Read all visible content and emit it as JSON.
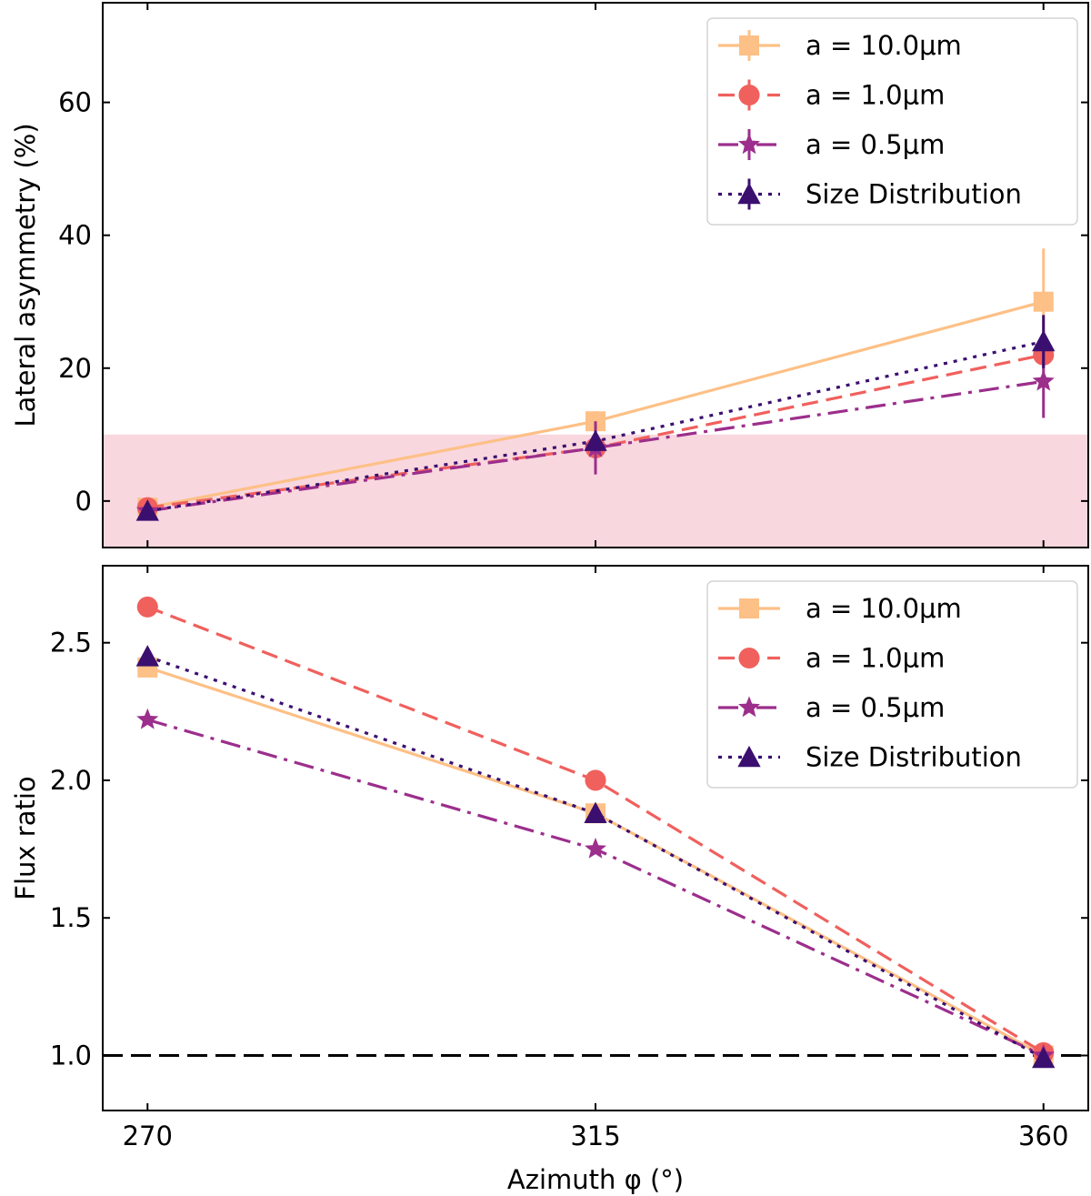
{
  "colors": {
    "a10": "#fdc086",
    "a1": "#f0605d",
    "a05": "#9c2e8c",
    "sizedist": "#3b0f70",
    "shade": "#f8d7df",
    "refline": "#000000"
  },
  "chart_data": [
    {
      "type": "line",
      "panel": "top",
      "title": "",
      "xlabel": "",
      "ylabel": "Lateral asymmetry (%)",
      "x": [
        270,
        315,
        360
      ],
      "xlim": [
        265.5,
        364.5
      ],
      "ylim": [
        -7,
        75
      ],
      "yticks": [
        0,
        20,
        40,
        60
      ],
      "shaded_band": {
        "y_from": -7,
        "y_to": 10
      },
      "legend_position": "top-right",
      "series": [
        {
          "key": "a10",
          "name": "a = 10.0μm",
          "values": [
            -1,
            12,
            30
          ],
          "errors": [
            0.5,
            1.5,
            8
          ],
          "marker": "square",
          "linestyle": "solid"
        },
        {
          "key": "a1",
          "name": "a = 1.0μm",
          "values": [
            -1,
            8,
            22
          ],
          "errors": [
            0.5,
            1.5,
            2
          ],
          "marker": "circle",
          "linestyle": "dashed"
        },
        {
          "key": "a05",
          "name": "a = 0.5μm",
          "values": [
            -1.5,
            8,
            18
          ],
          "errors": [
            0.5,
            4,
            5.5
          ],
          "marker": "star",
          "linestyle": "dashdot"
        },
        {
          "key": "sizedist",
          "name": "Size Distribution",
          "values": [
            -1.5,
            9,
            24
          ],
          "errors": [
            0.5,
            1.5,
            4
          ],
          "marker": "triangle",
          "linestyle": "dotted"
        }
      ]
    },
    {
      "type": "line",
      "panel": "bottom",
      "title": "",
      "xlabel": "Azimuth φ (°)",
      "ylabel": "Flux ratio",
      "x": [
        270,
        315,
        360
      ],
      "xlim": [
        265.5,
        364.5
      ],
      "ylim": [
        0.8,
        2.78
      ],
      "yticks": [
        1.0,
        1.5,
        2.0,
        2.5
      ],
      "xticks": [
        270,
        315,
        360
      ],
      "reference_line": {
        "y": 1.0,
        "linestyle": "dashed"
      },
      "legend_position": "top-right",
      "series": [
        {
          "key": "a10",
          "name": "a = 10.0μm",
          "values": [
            2.41,
            1.88,
            1.0
          ],
          "marker": "square",
          "linestyle": "solid"
        },
        {
          "key": "a1",
          "name": "a = 1.0μm",
          "values": [
            2.63,
            2.0,
            1.01
          ],
          "marker": "circle",
          "linestyle": "dashed"
        },
        {
          "key": "a05",
          "name": "a = 0.5μm",
          "values": [
            2.22,
            1.75,
            1.0
          ],
          "marker": "star",
          "linestyle": "dashdot"
        },
        {
          "key": "sizedist",
          "name": "Size Distribution",
          "values": [
            2.45,
            1.88,
            0.99
          ],
          "marker": "triangle",
          "linestyle": "dotted"
        }
      ]
    }
  ]
}
